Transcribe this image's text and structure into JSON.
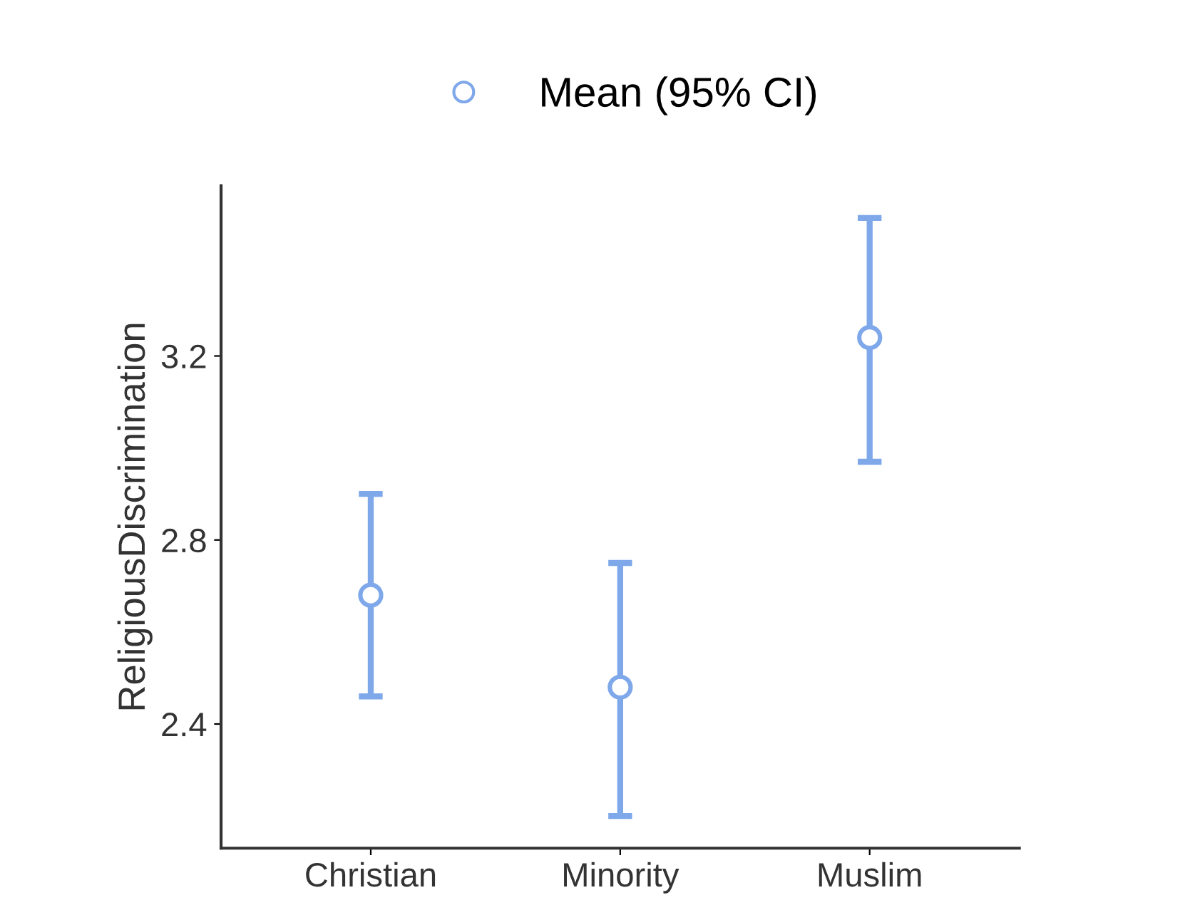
{
  "chart_data": {
    "type": "scatter",
    "ylabel": "ReligiousDiscrimination",
    "categories": [
      "Christian",
      "Minority",
      "Muslim"
    ],
    "series": [
      {
        "name": "Mean (95% CI)",
        "color": "#7ea8ea",
        "values": [
          2.68,
          2.48,
          3.24
        ],
        "errors": [
          [
            2.46,
            2.9
          ],
          [
            2.2,
            2.75
          ],
          [
            2.97,
            3.5
          ]
        ]
      }
    ],
    "ylim": [
      2.13,
      3.57
    ],
    "yticks": [
      2.4,
      2.8,
      3.2
    ],
    "grid": false,
    "legend": "top",
    "marker": "circle"
  }
}
